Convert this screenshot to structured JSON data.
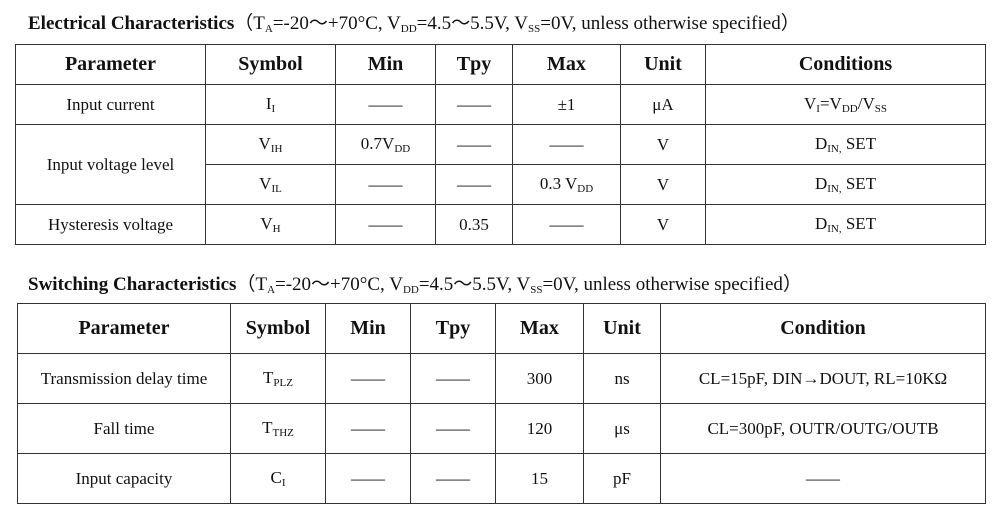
{
  "electrical": {
    "title": "Electrical Characteristics",
    "conditions": [
      "（T",
      {
        "sub": "A"
      },
      "=-20～+70°C, V",
      {
        "sub": "DD"
      },
      "=4.5～5.5V, V",
      {
        "sub": "SS"
      },
      "=0V, unless otherwise specified）"
    ],
    "header": [
      "Parameter",
      "Symbol",
      "Min",
      "Tpy",
      "Max",
      "Unit",
      "Conditions"
    ],
    "rows": [
      [
        "Input current",
        [
          "I",
          {
            "sub": "I"
          }
        ],
        "——",
        "——",
        "±1",
        "μA",
        [
          "V",
          {
            "sub": "I"
          },
          "=V",
          {
            "sub": "DD"
          },
          "/V",
          {
            "sub": "SS"
          }
        ]
      ],
      [
        "Input voltage level",
        [
          "V",
          {
            "sub": "IH"
          }
        ],
        [
          "0.7V",
          {
            "sub": "DD"
          }
        ],
        "——",
        "——",
        "V",
        [
          "D",
          {
            "sub": "IN,"
          },
          " SET"
        ]
      ],
      [
        [
          "V",
          {
            "sub": "IL"
          }
        ],
        "——",
        "——",
        [
          "0.3 V",
          {
            "sub": "DD"
          }
        ],
        "V",
        [
          "D",
          {
            "sub": "IN,"
          },
          " SET"
        ]
      ],
      [
        "Hysteresis voltage",
        [
          "V",
          {
            "sub": "H"
          }
        ],
        "——",
        "0.35",
        "——",
        "V",
        [
          "D",
          {
            "sub": "IN,"
          },
          " SET"
        ]
      ]
    ]
  },
  "switching": {
    "title": "Switching Characteristics",
    "conditions": [
      "（T",
      {
        "sub": "A"
      },
      "=-20～+70°C, V",
      {
        "sub": "DD"
      },
      "=4.5～5.5V, V",
      {
        "sub": "SS"
      },
      "=0V, unless otherwise specified）"
    ],
    "header": [
      "Parameter",
      "Symbol",
      "Min",
      "Tpy",
      "Max",
      "Unit",
      "Condition"
    ],
    "rows": [
      [
        "Transmission delay time",
        [
          "T",
          {
            "sub": "PLZ"
          }
        ],
        "——",
        "——",
        "300",
        "ns",
        "CL=15pF, DIN→DOUT, RL=10KΩ"
      ],
      [
        "Fall time",
        [
          "T",
          {
            "sub": "THZ"
          }
        ],
        "——",
        "——",
        "120",
        "μs",
        "CL=300pF, OUTR/OUTG/OUTB"
      ],
      [
        "Input capacity",
        [
          "C",
          {
            "sub": "I"
          }
        ],
        "——",
        "——",
        "15",
        "pF",
        "——"
      ]
    ]
  }
}
